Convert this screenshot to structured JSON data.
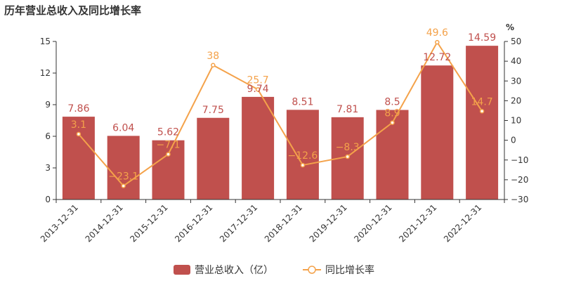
{
  "chart_data": {
    "type": "bar",
    "title": "历年营业总收入及同比增长率",
    "categories": [
      "2013-12-31",
      "2014-12-31",
      "2015-12-31",
      "2016-12-31",
      "2017-12-31",
      "2018-12-31",
      "2019-12-31",
      "2020-12-31",
      "2021-12-31",
      "2022-12-31"
    ],
    "series": [
      {
        "name": "营业总收入（亿）",
        "type": "bar",
        "axis": "left",
        "values": [
          7.86,
          6.04,
          5.62,
          7.75,
          9.74,
          8.51,
          7.81,
          8.5,
          12.72,
          14.59
        ],
        "value_labels": [
          "7.86",
          "6.04",
          "5.62",
          "7.75",
          "9.74",
          "8.51",
          "7.81",
          "8.5",
          "12.72",
          "14.59"
        ]
      },
      {
        "name": "同比增长率",
        "type": "line",
        "axis": "right",
        "values": [
          3.1,
          -23.1,
          -7.1,
          38,
          25.7,
          -12.6,
          -8.3,
          8.9,
          49.6,
          14.7
        ],
        "value_labels": [
          "3.1",
          "−23.1",
          "−7.1",
          "38",
          "25.7",
          "−12.6",
          "−8.3",
          "8.9",
          "49.6",
          "14.7"
        ]
      }
    ],
    "y_left": {
      "ylim": [
        0,
        15
      ],
      "ticks": [
        "0",
        "3",
        "6",
        "9",
        "12",
        "15"
      ]
    },
    "y_right": {
      "unit": "%",
      "ylim": [
        -30,
        50
      ],
      "ticks": [
        "−30",
        "−20",
        "−10",
        "0",
        "10",
        "20",
        "30",
        "40",
        "50"
      ]
    },
    "grid": false,
    "legend": "bottom-center",
    "colors": {
      "bar": "#c0504d",
      "bar_label": "#c0504d",
      "line": "#f4a24a",
      "line_label": "#f4a24a",
      "axis": "#333333"
    }
  }
}
